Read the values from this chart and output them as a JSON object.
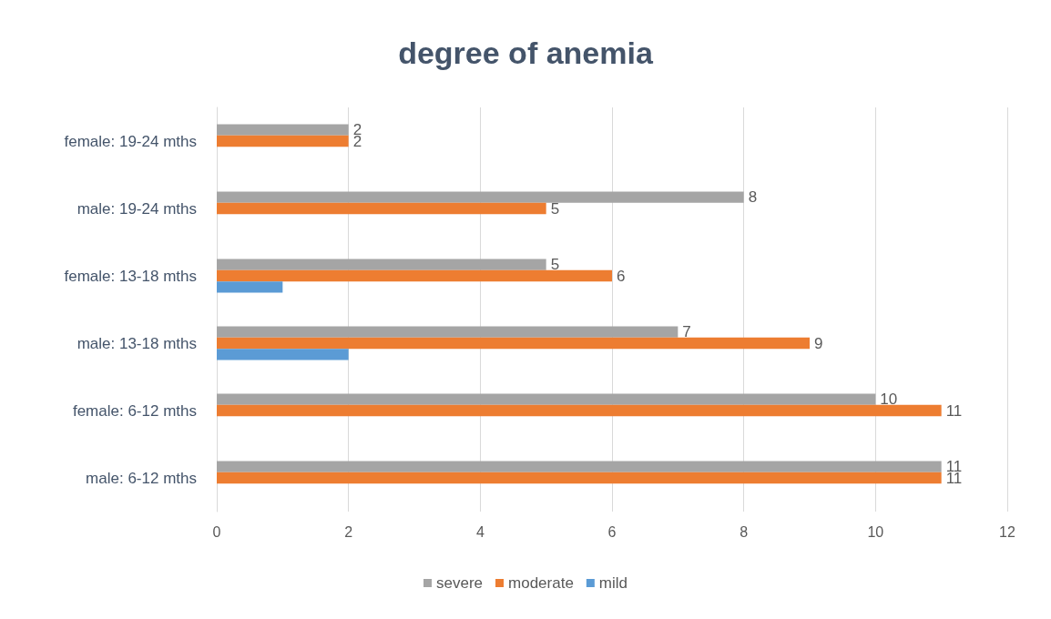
{
  "chart_data": {
    "type": "bar",
    "title": "degree of anemia",
    "orientation": "horizontal",
    "categories": [
      "female: 19-24 mths",
      "male: 19-24 mths",
      "female: 13-18 mths",
      "male: 13-18 mths",
      "female: 6-12 mths",
      "male: 6-12 mths"
    ],
    "series": [
      {
        "name": "severe",
        "color": "#a5a5a5",
        "values": [
          2,
          8,
          5,
          7,
          10,
          11
        ],
        "value_labels": [
          "2",
          "8",
          "5",
          "7",
          "10",
          "11"
        ]
      },
      {
        "name": "moderate",
        "color": "#ed7d31",
        "values": [
          2,
          5,
          6,
          9,
          11,
          11
        ],
        "value_labels": [
          "2",
          "5",
          "6",
          "9",
          "11",
          "11"
        ]
      },
      {
        "name": "mild",
        "color": "#5b9bd5",
        "values": [
          null,
          null,
          1,
          2,
          null,
          null
        ]
      }
    ],
    "xlim": [
      0,
      12
    ],
    "xticks": [
      0,
      2,
      4,
      6,
      8,
      10,
      12
    ],
    "grid": "x",
    "legend": "bottom"
  }
}
